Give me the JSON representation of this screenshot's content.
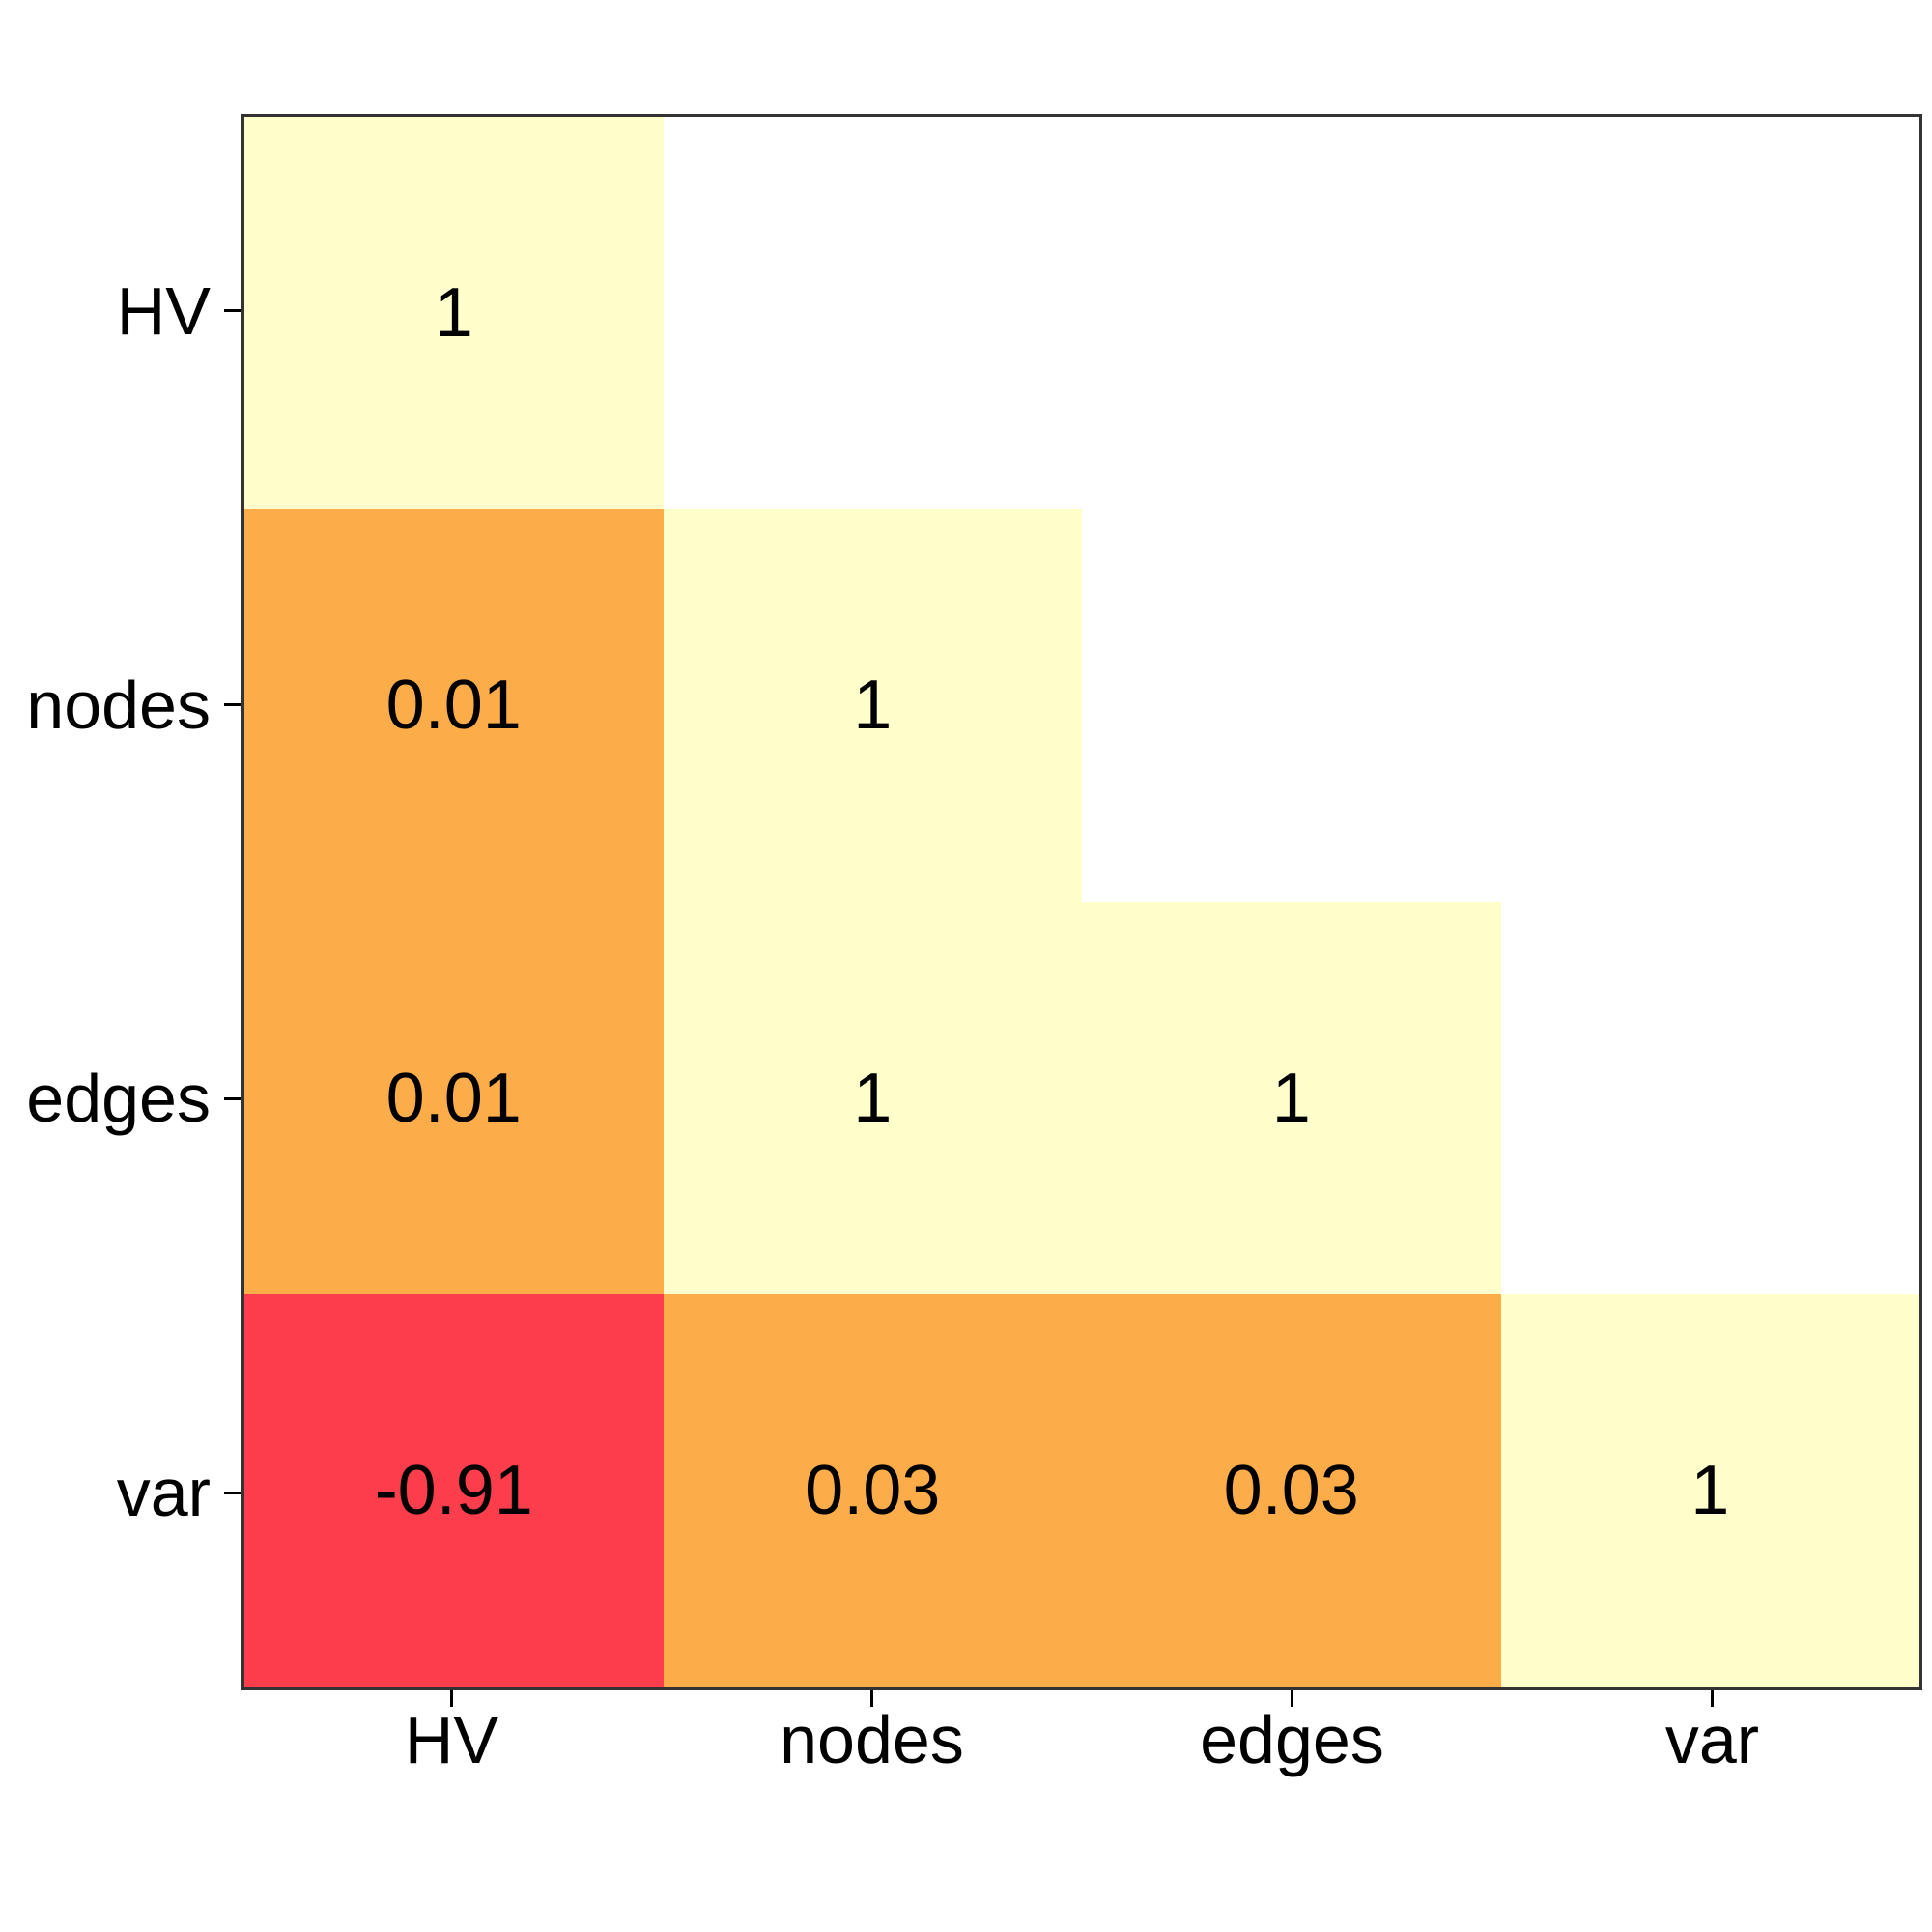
{
  "figure": {
    "background": "#FFFFFF",
    "panel_border_color": "#333333",
    "text_color": "#000000"
  },
  "chart_data": {
    "type": "heatmap",
    "title": "",
    "subtitle": "",
    "variables": [
      "HV",
      "nodes",
      "edges",
      "var"
    ],
    "x_tick_labels": [
      "HV",
      "nodes",
      "edges",
      "var"
    ],
    "y_tick_labels": [
      "HV",
      "nodes",
      "edges",
      "var"
    ],
    "matrix": [
      [
        1,
        null,
        null,
        null
      ],
      [
        0.01,
        1,
        null,
        null
      ],
      [
        0.01,
        1,
        1,
        null
      ],
      [
        -0.91,
        0.03,
        0.03,
        1
      ]
    ],
    "value_labels": [
      [
        "1",
        "",
        "",
        ""
      ],
      [
        "0.01",
        "1",
        "",
        ""
      ],
      [
        "0.01",
        "1",
        "1",
        ""
      ],
      [
        "-0.91",
        "0.03",
        "0.03",
        "1"
      ]
    ],
    "cell_colors": [
      [
        "#FFFFCC",
        "",
        "",
        ""
      ],
      [
        "#FCAD4A",
        "#FFFFCC",
        "",
        ""
      ],
      [
        "#FCAD4A",
        "#FFFFCC",
        "#FFFFCC",
        ""
      ],
      [
        "#FC3D4B",
        "#FCAD4A",
        "#FCAD4A",
        "#FFFFCC"
      ]
    ],
    "color_scale": {
      "strong_negative": "#FC3D4B",
      "near_zero": "#FCAD4A",
      "positive_one": "#FFFFCC",
      "empty": "#FFFFFF"
    },
    "layout_hints": {
      "shape": "lower-triangle",
      "legend": "none",
      "grid": false,
      "value_range": [
        -1,
        1
      ]
    }
  }
}
